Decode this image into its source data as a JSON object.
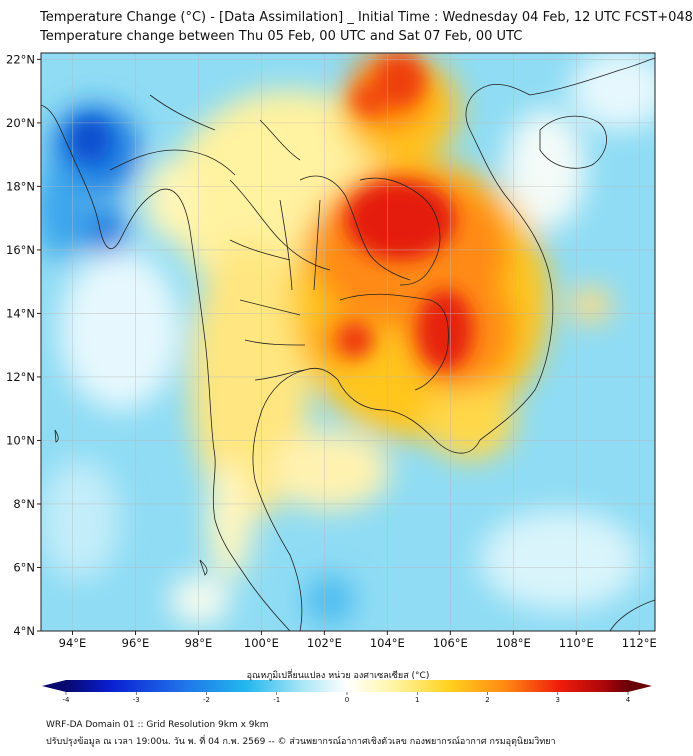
{
  "title_line1": "Temperature Change (°C) - [Data Assimilation] _ Initial Time : Wednesday 04 Feb, 12 UTC FCST+048",
  "title_line2": "Temperature change between Thu 05 Feb, 00 UTC and Sat 07 Feb, 00 UTC",
  "map": {
    "lat_labels": [
      "22°N",
      "20°N",
      "18°N",
      "16°N",
      "14°N",
      "12°N",
      "10°N",
      "8°N",
      "6°N",
      "4°N"
    ],
    "lon_labels": [
      "94°E",
      "96°E",
      "98°E",
      "100°E",
      "102°E",
      "104°E",
      "106°E",
      "108°E",
      "110°E",
      "112°E"
    ],
    "lat_values": [
      22,
      20,
      18,
      16,
      14,
      12,
      10,
      8,
      6,
      4
    ],
    "lon_values": [
      94,
      96,
      98,
      100,
      102,
      104,
      106,
      108,
      110,
      112
    ],
    "lon_range": [
      93,
      112.5
    ],
    "lat_range": [
      4,
      22.2
    ],
    "grid": true
  },
  "colorbar": {
    "label": "อุณหภูมิเปลี่ยนแปลง หน่วย องศาเซลเซียส (°C)",
    "ticks": [
      "-4",
      "-3",
      "-2",
      "-1",
      "0",
      "1",
      "2",
      "3",
      "4"
    ],
    "tick_values": [
      -4,
      -3,
      -2,
      -1,
      0,
      1,
      2,
      3,
      4
    ],
    "range": [
      -4,
      4
    ],
    "extend": "both"
  },
  "footer_line1": "WRF-DA Domain 01 :: Grid Resolution 9km x 9km",
  "footer_line2": "ปรับปรุงข้อมูล ณ เวลา 19:00น. วัน พ. ที่ 04 ก.พ. 2569 -- © ส่วนพยากรณ์อากาศเชิงตัวเลข กองพยากรณ์อากาศ กรมอุตุนิยมวิทยา"
}
